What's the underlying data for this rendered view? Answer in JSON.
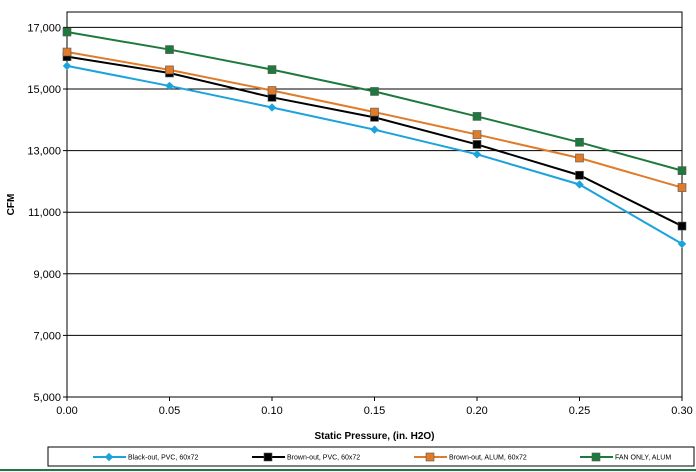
{
  "chart_data": {
    "type": "line",
    "title": "",
    "xlabel": "Static Pressure, (in. H2O)",
    "ylabel": "CFM",
    "x": [
      0.0,
      0.05,
      0.1,
      0.15,
      0.2,
      0.25,
      0.3
    ],
    "x_tick_labels": [
      "0.00",
      "0.05",
      "0.10",
      "0.15",
      "0.20",
      "0.25",
      "0.30"
    ],
    "xlim": [
      0.0,
      0.3
    ],
    "y_tick_values": [
      5000,
      7000,
      9000,
      11000,
      13000,
      15000,
      17000
    ],
    "y_tick_labels": [
      "5,000",
      "7,000",
      "9,000",
      "11,000",
      "13,000",
      "15,000",
      "17,000"
    ],
    "ylim": [
      5000,
      17500
    ],
    "grid": true,
    "legend_position": "bottom",
    "series": [
      {
        "name": "Black-out, PVC, 60x72",
        "color": "#1ba3dc",
        "marker": "diamond",
        "values": [
          15750,
          15100,
          14400,
          13680,
          12880,
          11900,
          9970
        ]
      },
      {
        "name": "Brown-out, PVC, 60x72",
        "color": "#000000",
        "marker": "square",
        "values": [
          16050,
          15520,
          14730,
          14080,
          13200,
          12200,
          10550
        ]
      },
      {
        "name": "Brown-out, ALUM, 60x72",
        "color": "#e07b2a",
        "marker": "square",
        "values": [
          16200,
          15620,
          14950,
          14250,
          13520,
          12760,
          11800
        ]
      },
      {
        "name": "FAN ONLY, ALUM",
        "color": "#1e7a3c",
        "marker": "square",
        "values": [
          16850,
          16280,
          15630,
          14920,
          14110,
          13270,
          12350
        ]
      }
    ]
  }
}
